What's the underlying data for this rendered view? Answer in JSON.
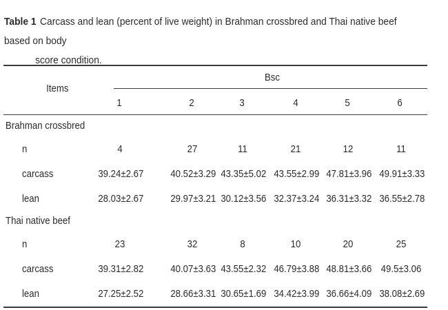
{
  "caption": {
    "label": "Table 1",
    "line1": "Carcass and lean (percent of live weight) in Brahman crossbred and Thai native beef based on body",
    "line2": "score condition."
  },
  "table": {
    "items_header": "Items",
    "bsc_header": "Bsc",
    "columns": [
      "1",
      "2",
      "3",
      "4",
      "5",
      "6"
    ],
    "groups": [
      {
        "name": "Brahman crossbred",
        "rows": [
          {
            "label": "n",
            "values": [
              "4",
              "27",
              "11",
              "21",
              "12",
              "11"
            ]
          },
          {
            "label": "carcass",
            "values": [
              "39.24±2.67",
              "40.52±3.29",
              "43.35±5.02",
              "43.55±2.99",
              "47.81±3.96",
              "49.91±3.33"
            ]
          },
          {
            "label": "lean",
            "values": [
              "28.03±2.67",
              "29.97±3.21",
              "30.12±3.56",
              "32.37±3.24",
              "36.31±3.32",
              "36.55±2.78"
            ]
          }
        ]
      },
      {
        "name": "Thai native beef",
        "rows": [
          {
            "label": "n",
            "values": [
              "23",
              "32",
              "8",
              "10",
              "20",
              "25"
            ]
          },
          {
            "label": "carcass",
            "values": [
              "39.31±2.82",
              "40.07±3.63",
              "43.55±2.32",
              "46.79±3.88",
              "48.81±3.66",
              "49.5±3.06"
            ]
          },
          {
            "label": "lean",
            "values": [
              "27.25±2.52",
              "28.66±3.31",
              "30.65±1.69",
              "34.42±3.99",
              "36.66±4.09",
              "38.08±2.69"
            ]
          }
        ]
      }
    ]
  }
}
